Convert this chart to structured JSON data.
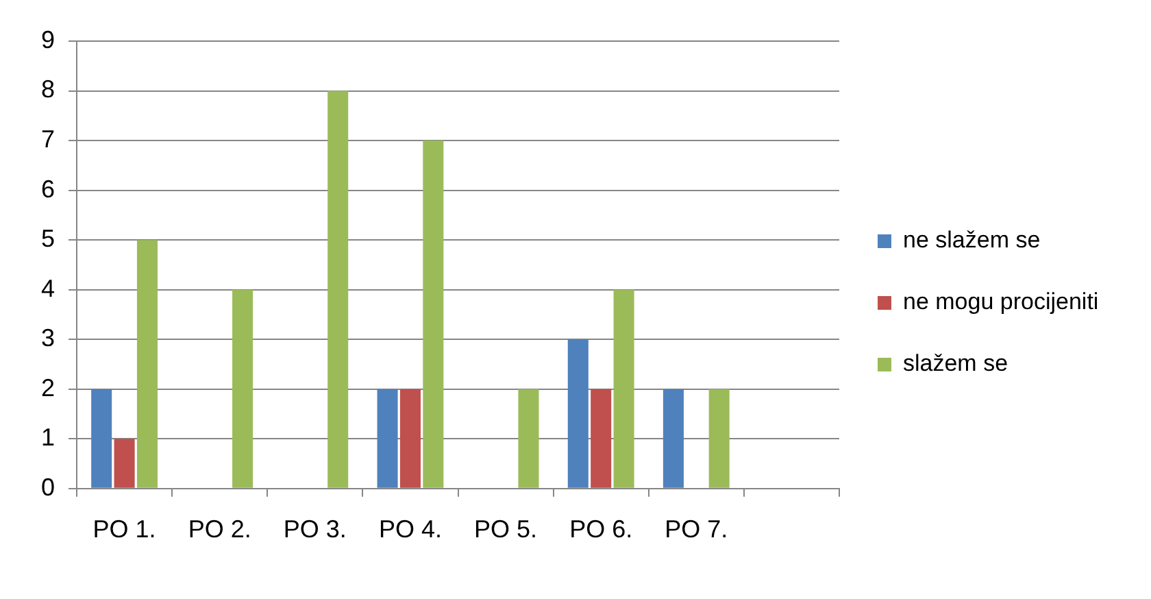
{
  "chart_data": {
    "type": "bar",
    "categories": [
      "PO 1.",
      "PO 2.",
      "PO 3.",
      "PO 4.",
      "PO 5.",
      "PO 6.",
      "PO 7.",
      null
    ],
    "series": [
      {
        "name": "ne slažem se",
        "color": "#4f81bd",
        "values": [
          2,
          null,
          null,
          2,
          null,
          3,
          2,
          null
        ]
      },
      {
        "name": "ne mogu procijeniti",
        "color": "#c0504d",
        "values": [
          1,
          null,
          null,
          2,
          null,
          2,
          null,
          null
        ]
      },
      {
        "name": "slažem se",
        "color": "#9bbb59",
        "values": [
          5,
          4,
          8,
          7,
          2,
          4,
          2,
          null
        ]
      }
    ],
    "ylim": [
      0,
      9
    ],
    "yticks": [
      0,
      1,
      2,
      3,
      4,
      5,
      6,
      7,
      8,
      9
    ],
    "grid": "y",
    "legend": "right"
  }
}
